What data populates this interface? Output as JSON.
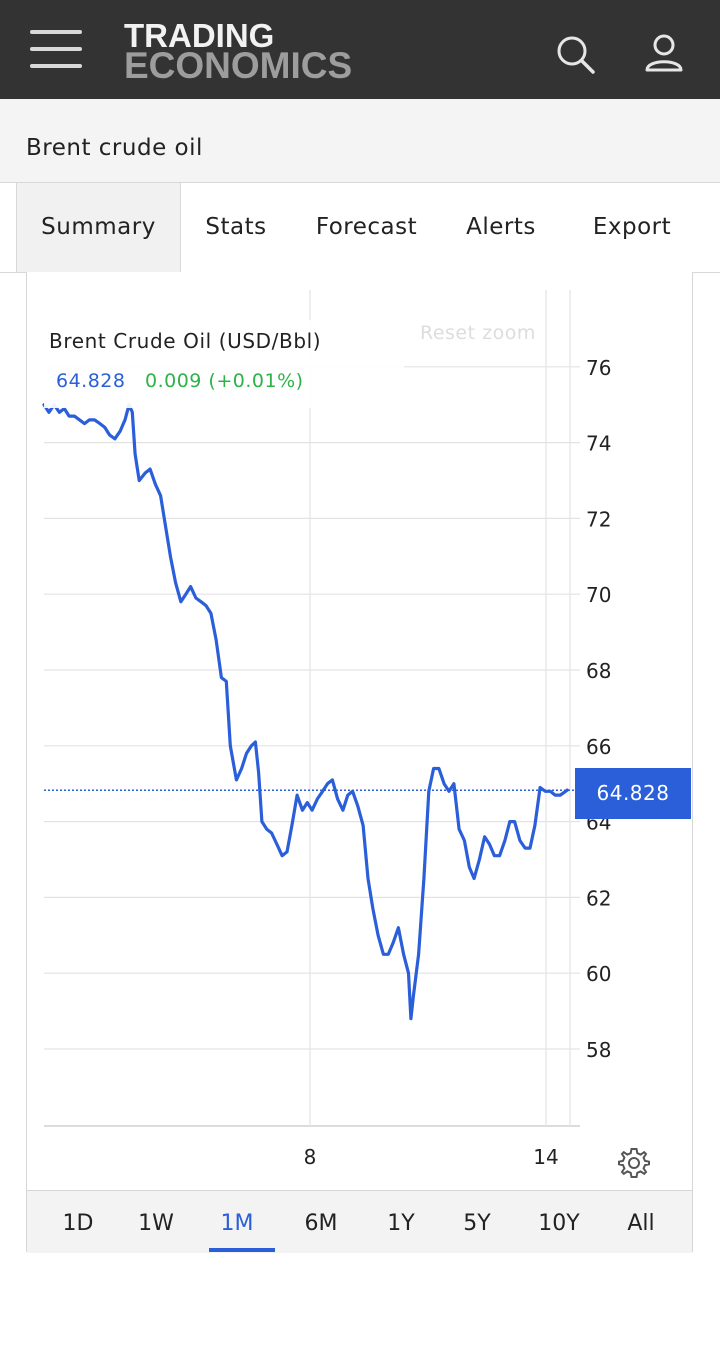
{
  "header": {
    "logo_line1": "TRADING",
    "logo_line2": "ECONOMICS",
    "menu_icon": "hamburger-icon",
    "search_icon": "search-icon",
    "user_icon": "user-icon"
  },
  "page_title": "Brent crude oil",
  "tabs": [
    {
      "label": "Summary",
      "active": true
    },
    {
      "label": "Stats"
    },
    {
      "label": "Forecast"
    },
    {
      "label": "Alerts"
    },
    {
      "label": "Export"
    }
  ],
  "legend": {
    "title": "Brent Crude Oil (USD/Bbl)",
    "price": "64.828",
    "change": "0.009 (+0.01%)"
  },
  "reset_zoom": "Reset zoom",
  "current_price_label": "64.828",
  "settings_icon": "gear-icon",
  "ranges": [
    {
      "label": "1D"
    },
    {
      "label": "1W"
    },
    {
      "label": "1M",
      "active": true
    },
    {
      "label": "6M"
    },
    {
      "label": "1Y"
    },
    {
      "label": "5Y"
    },
    {
      "label": "10Y"
    },
    {
      "label": "All"
    }
  ],
  "colors": {
    "line": "#2a5fd9",
    "change_positive": "#2db34a",
    "header_bg": "#333333"
  },
  "chart_data": {
    "type": "line",
    "title": "Brent Crude Oil (USD/Bbl)",
    "y_range": [
      56,
      77
    ],
    "y_ticks": [
      58,
      60,
      62,
      64,
      66,
      68,
      70,
      72,
      74,
      76
    ],
    "x_ticks": [
      "8",
      "14"
    ],
    "last_value": 64.828,
    "series": [
      {
        "name": "Brent Crude Oil",
        "points": [
          [
            0.0,
            75.0
          ],
          [
            0.12,
            74.8
          ],
          [
            0.25,
            75.0
          ],
          [
            0.38,
            74.8
          ],
          [
            0.5,
            74.9
          ],
          [
            0.62,
            74.7
          ],
          [
            0.75,
            74.7
          ],
          [
            0.88,
            74.6
          ],
          [
            1.0,
            74.5
          ],
          [
            1.12,
            74.6
          ],
          [
            1.25,
            74.6
          ],
          [
            1.38,
            74.5
          ],
          [
            1.5,
            74.4
          ],
          [
            1.62,
            74.2
          ],
          [
            1.75,
            74.1
          ],
          [
            1.88,
            74.3
          ],
          [
            2.0,
            74.6
          ],
          [
            2.1,
            75.0
          ],
          [
            2.18,
            74.8
          ],
          [
            2.25,
            73.7
          ],
          [
            2.35,
            73.0
          ],
          [
            2.5,
            73.2
          ],
          [
            2.62,
            73.3
          ],
          [
            2.75,
            72.9
          ],
          [
            2.88,
            72.6
          ],
          [
            3.0,
            71.8
          ],
          [
            3.12,
            71.0
          ],
          [
            3.25,
            70.3
          ],
          [
            3.38,
            69.8
          ],
          [
            3.5,
            70.0
          ],
          [
            3.62,
            70.2
          ],
          [
            3.75,
            69.9
          ],
          [
            3.88,
            69.8
          ],
          [
            4.0,
            69.7
          ],
          [
            4.12,
            69.5
          ],
          [
            4.25,
            68.8
          ],
          [
            4.38,
            67.8
          ],
          [
            4.5,
            67.7
          ],
          [
            4.6,
            66.0
          ],
          [
            4.75,
            65.1
          ],
          [
            4.88,
            65.4
          ],
          [
            5.0,
            65.8
          ],
          [
            5.12,
            66.0
          ],
          [
            5.22,
            66.1
          ],
          [
            5.3,
            65.3
          ],
          [
            5.38,
            64.0
          ],
          [
            5.5,
            63.8
          ],
          [
            5.62,
            63.7
          ],
          [
            5.75,
            63.4
          ],
          [
            5.88,
            63.1
          ],
          [
            6.0,
            63.2
          ],
          [
            6.12,
            63.9
          ],
          [
            6.25,
            64.7
          ],
          [
            6.38,
            64.3
          ],
          [
            6.5,
            64.5
          ],
          [
            6.62,
            64.3
          ],
          [
            6.75,
            64.6
          ],
          [
            6.88,
            64.8
          ],
          [
            7.0,
            65.0
          ],
          [
            7.12,
            65.1
          ],
          [
            7.25,
            64.6
          ],
          [
            7.38,
            64.3
          ],
          [
            7.5,
            64.7
          ],
          [
            7.62,
            64.8
          ],
          [
            7.75,
            64.4
          ],
          [
            7.88,
            63.9
          ],
          [
            8.0,
            62.5
          ],
          [
            8.12,
            61.7
          ],
          [
            8.25,
            61.0
          ],
          [
            8.38,
            60.5
          ],
          [
            8.5,
            60.5
          ],
          [
            8.62,
            60.8
          ],
          [
            8.75,
            61.2
          ],
          [
            8.88,
            60.5
          ],
          [
            9.0,
            60.0
          ],
          [
            9.06,
            58.8
          ],
          [
            9.12,
            59.4
          ],
          [
            9.25,
            60.5
          ],
          [
            9.38,
            62.5
          ],
          [
            9.5,
            64.8
          ],
          [
            9.62,
            65.4
          ],
          [
            9.75,
            65.4
          ],
          [
            9.88,
            65.0
          ],
          [
            10.0,
            64.8
          ],
          [
            10.12,
            65.0
          ],
          [
            10.25,
            63.8
          ],
          [
            10.38,
            63.5
          ],
          [
            10.5,
            62.8
          ],
          [
            10.62,
            62.5
          ],
          [
            10.75,
            63.0
          ],
          [
            10.88,
            63.6
          ],
          [
            11.0,
            63.4
          ],
          [
            11.12,
            63.1
          ],
          [
            11.25,
            63.1
          ],
          [
            11.38,
            63.5
          ],
          [
            11.5,
            64.0
          ],
          [
            11.62,
            64.0
          ],
          [
            11.75,
            63.5
          ],
          [
            11.88,
            63.3
          ],
          [
            12.0,
            63.3
          ],
          [
            12.12,
            63.9
          ],
          [
            12.25,
            64.9
          ],
          [
            12.38,
            64.8
          ],
          [
            12.5,
            64.8
          ],
          [
            12.62,
            64.7
          ],
          [
            12.75,
            64.7
          ],
          [
            12.88,
            64.8
          ],
          [
            12.92,
            64.83
          ]
        ]
      }
    ]
  }
}
